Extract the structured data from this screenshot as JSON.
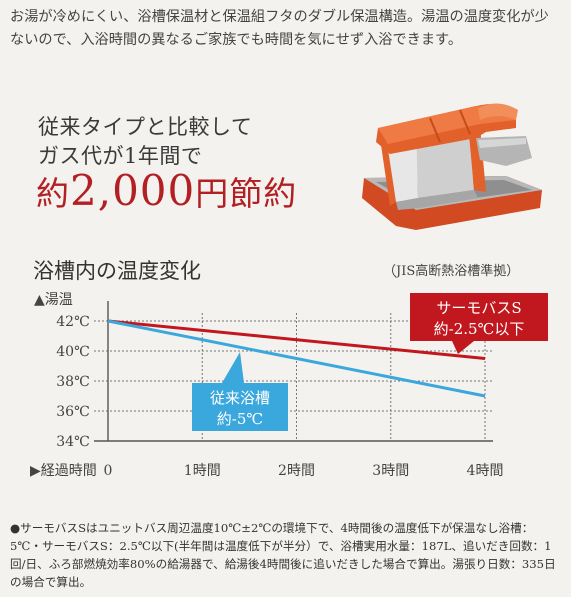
{
  "intro_text": "お湯が冷めにくい、浴槽保温材と保温組フタのダブル保温構造。湯温の温度変化が少ないので、入浴時間の異なるご家族でも時間を気にせず入浴できます。",
  "promo": {
    "line1": "従来タイプと比較して",
    "line2": "ガス代が1年間で",
    "big_prefix": "約",
    "big_amount": "2,000",
    "big_suffix": "円節約"
  },
  "colors": {
    "accent_red": "#c0181e",
    "accent_blue": "#3aa7dd",
    "tub_orange": "#e2612a",
    "axis": "#555555"
  },
  "tub_icon": "bathtub-cutaway-illustration",
  "chart_data": {
    "type": "line",
    "title": "浴槽内の温度変化",
    "note": "（JIS高断熱浴槽準拠）",
    "ylabel": "▲湯温",
    "xlabel": "▶経過時間",
    "yticks": [
      "34℃",
      "36℃",
      "38℃",
      "40℃",
      "42℃"
    ],
    "ytick_values": [
      34,
      36,
      38,
      40,
      42
    ],
    "xticks": [
      "0",
      "1時間",
      "2時間",
      "3時間",
      "4時間"
    ],
    "xtick_values": [
      0,
      1,
      2,
      3,
      4
    ],
    "ylim": [
      34,
      42
    ],
    "xlim": [
      0,
      4
    ],
    "grid": true,
    "series": [
      {
        "name": "サーモバスS 約-2.5℃以下",
        "label_lines": [
          "サーモバスS",
          "約-2.5℃以下"
        ],
        "color": "#c0181e",
        "x": [
          0,
          4
        ],
        "y": [
          42,
          39.5
        ]
      },
      {
        "name": "従来浴槽 約-5℃",
        "label_lines": [
          "従来浴槽",
          "約-5℃"
        ],
        "color": "#3aa7dd",
        "x": [
          0,
          4
        ],
        "y": [
          42,
          37
        ]
      }
    ]
  },
  "footnote": "●サーモバスSはユニットバス周辺温度10℃±2℃の環境下で、4時間後の温度低下が保温なし浴槽：5℃・サーモバスS：2.5℃以下(半年間は温度低下が半分）で、浴槽実用水量：187L、追いだき回数：1回/日、ふろ部燃焼効率80%の給湯器で、給湯後4時間後に追いだきした場合で算出。湯張り日数：335日の場合で算出。"
}
